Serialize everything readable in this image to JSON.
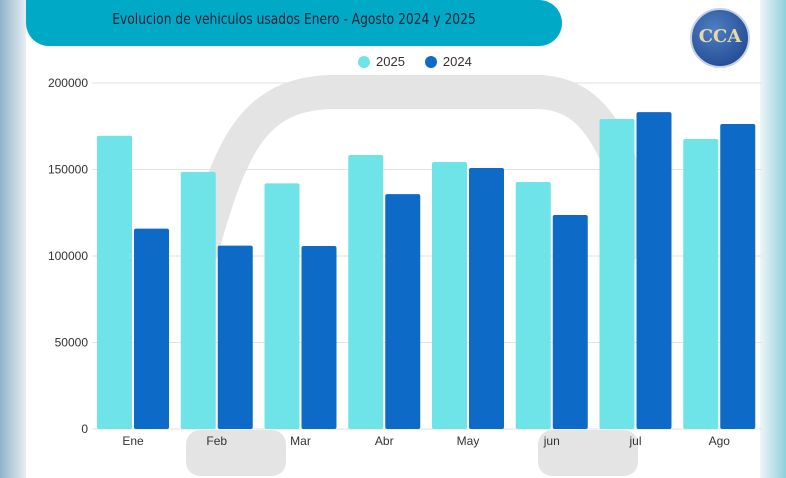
{
  "chart_data": {
    "type": "bar",
    "title": "Evolucion de vehiculos usados Enero - Agosto 2024 y 2025",
    "categories": [
      "Ene",
      "Feb",
      "Mar",
      "Abr",
      "May",
      "jun",
      "jul",
      "Ago"
    ],
    "series": [
      {
        "name": "2025",
        "color": "#6ee4e8",
        "values": [
          169500,
          148600,
          142000,
          158400,
          154300,
          142800,
          179200,
          167600
        ]
      },
      {
        "name": "2024",
        "color": "#0d6bc7",
        "values": [
          115800,
          106000,
          105800,
          135800,
          150900,
          123700,
          183200,
          176300
        ]
      }
    ],
    "ylim": [
      0,
      200000
    ],
    "yticks": [
      "0",
      "50000",
      "100000",
      "150000",
      "200000"
    ],
    "grid": true,
    "legend": "top-center"
  },
  "logo": {
    "text": "CCA"
  }
}
